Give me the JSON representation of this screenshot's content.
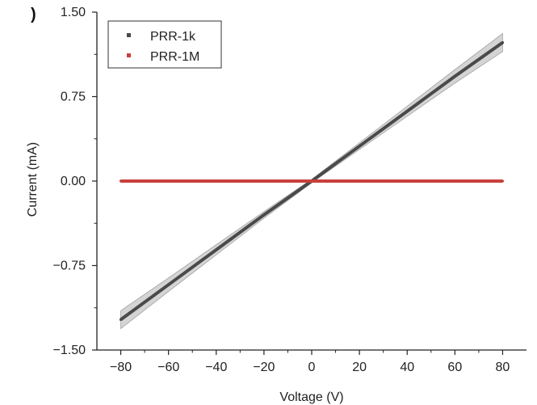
{
  "panel_label": ")",
  "chart_data": {
    "type": "line",
    "title": "",
    "xlabel": "Voltage (V)",
    "ylabel": "Current (mA)",
    "xlim": [
      -90,
      90
    ],
    "ylim": [
      -1.5,
      1.5
    ],
    "xticks": [
      -80,
      -60,
      -40,
      -20,
      0,
      20,
      40,
      60,
      80
    ],
    "yticks": [
      -1.5,
      -0.75,
      0.0,
      0.75,
      1.5
    ],
    "xtick_labels": [
      "−80",
      "−60",
      "−40",
      "−20",
      "0",
      "20",
      "40",
      "60",
      "80"
    ],
    "ytick_labels": [
      "−1.50",
      "−0.75",
      "0.00",
      "0.75",
      "1.50"
    ],
    "grid": false,
    "legend_position": "top-left",
    "series": [
      {
        "name": "PRR-1k",
        "color": "#4a4a4a",
        "x": [
          -80,
          -60,
          -40,
          -20,
          0,
          20,
          40,
          60,
          80
        ],
        "y": [
          -1.23,
          -0.92,
          -0.61,
          -0.3,
          0.0,
          0.31,
          0.62,
          0.93,
          1.23
        ],
        "band": {
          "color": "#c9c9c9",
          "half_width": [
            0.08,
            0.06,
            0.045,
            0.03,
            0.015,
            0.03,
            0.045,
            0.06,
            0.08
          ]
        }
      },
      {
        "name": "PRR-1M",
        "color": "#c8403c",
        "x": [
          -80,
          -60,
          -40,
          -20,
          0,
          20,
          40,
          60,
          80
        ],
        "y": [
          0,
          0,
          0,
          0,
          0,
          0,
          0,
          0,
          0
        ]
      }
    ]
  }
}
